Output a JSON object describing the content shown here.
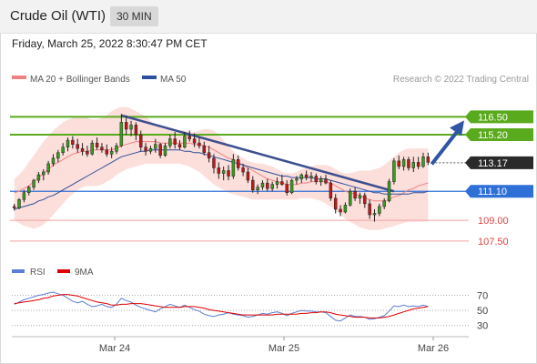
{
  "header": {
    "title": "Crude Oil (WTI)",
    "timeframe": "30 MIN",
    "datetime": "Friday, March 25, 2022 8:30:47 PM CET"
  },
  "legend": {
    "items": [
      {
        "label": "MA 20 + Bollinger Bands",
        "color": "#f08080"
      },
      {
        "label": "MA 50",
        "color": "#2c4f9e"
      }
    ],
    "credit": "Research © 2022 Trading Central"
  },
  "rsi_legend": {
    "items": [
      {
        "label": "RSI",
        "color": "#5b7fd4"
      },
      {
        "label": "9MA",
        "color": "#e00000"
      }
    ]
  },
  "chart_data": [
    {
      "type": "candlestick",
      "ylim": [
        106.5,
        118.5
      ],
      "levels": [
        {
          "value": 116.5,
          "label": "116.50",
          "kind": "resistance",
          "color": "#5aaa1e"
        },
        {
          "value": 115.2,
          "label": "115.20",
          "kind": "resistance",
          "color": "#5aaa1e"
        },
        {
          "value": 113.17,
          "label": "113.17",
          "kind": "last",
          "color": "#2a2a2a"
        },
        {
          "value": 111.1,
          "label": "111.10",
          "kind": "pivot",
          "color": "#2e6fd8"
        },
        {
          "value": 109.0,
          "label": "109.00",
          "kind": "support",
          "color": "#d44"
        },
        {
          "value": 107.5,
          "label": "107.50",
          "kind": "support",
          "color": "#d44"
        }
      ],
      "x_ticks": [
        "Mar 24",
        "Mar 25",
        "Mar 26"
      ],
      "series": {
        "ohlc": [
          [
            110.0,
            110.2,
            109.7,
            109.9
          ],
          [
            109.9,
            110.6,
            109.8,
            110.5
          ],
          [
            110.5,
            111.2,
            110.3,
            111.0
          ],
          [
            111.0,
            111.5,
            110.8,
            111.4
          ],
          [
            111.4,
            112.0,
            111.2,
            111.9
          ],
          [
            111.9,
            112.5,
            111.7,
            112.3
          ],
          [
            112.3,
            112.7,
            111.9,
            112.5
          ],
          [
            112.5,
            113.3,
            112.3,
            113.1
          ],
          [
            113.1,
            113.8,
            112.9,
            113.5
          ],
          [
            113.5,
            114.1,
            113.2,
            113.9
          ],
          [
            113.9,
            114.6,
            113.7,
            114.3
          ],
          [
            114.3,
            115.0,
            114.0,
            114.8
          ],
          [
            114.8,
            115.1,
            114.2,
            114.5
          ],
          [
            114.5,
            114.9,
            113.9,
            114.2
          ],
          [
            114.2,
            114.6,
            113.7,
            114.0
          ],
          [
            114.0,
            114.4,
            113.6,
            113.8
          ],
          [
            113.8,
            114.8,
            113.7,
            114.6
          ],
          [
            114.6,
            115.0,
            114.1,
            114.3
          ],
          [
            114.3,
            114.6,
            113.9,
            114.1
          ],
          [
            114.1,
            114.5,
            113.6,
            113.8
          ],
          [
            113.8,
            114.3,
            113.5,
            114.0
          ],
          [
            114.0,
            114.6,
            113.8,
            114.4
          ],
          [
            114.4,
            116.7,
            114.3,
            116.1
          ],
          [
            116.1,
            116.6,
            115.2,
            115.6
          ],
          [
            115.6,
            116.2,
            115.1,
            115.9
          ],
          [
            115.9,
            116.1,
            114.8,
            115.2
          ],
          [
            115.2,
            115.5,
            114.0,
            114.3
          ],
          [
            114.3,
            114.6,
            113.7,
            114.0
          ],
          [
            114.0,
            114.4,
            113.8,
            114.2
          ],
          [
            114.2,
            114.9,
            113.9,
            114.5
          ],
          [
            114.5,
            114.6,
            113.5,
            113.7
          ],
          [
            113.7,
            114.6,
            113.6,
            114.4
          ],
          [
            114.4,
            115.2,
            114.2,
            114.9
          ],
          [
            114.9,
            115.4,
            114.2,
            114.5
          ],
          [
            114.5,
            114.8,
            114.1,
            114.3
          ],
          [
            114.3,
            115.4,
            114.2,
            115.1
          ],
          [
            115.1,
            115.5,
            114.7,
            114.9
          ],
          [
            114.9,
            115.3,
            114.3,
            114.6
          ],
          [
            114.6,
            115.0,
            114.2,
            114.4
          ],
          [
            114.4,
            114.7,
            113.7,
            113.9
          ],
          [
            113.9,
            114.4,
            113.2,
            113.5
          ],
          [
            113.5,
            113.8,
            112.4,
            112.8
          ],
          [
            112.8,
            113.2,
            112.0,
            112.4
          ],
          [
            112.4,
            112.9,
            111.9,
            112.6
          ],
          [
            112.6,
            113.0,
            111.9,
            112.2
          ],
          [
            112.2,
            113.8,
            112.0,
            113.4
          ],
          [
            113.4,
            113.7,
            112.6,
            112.8
          ],
          [
            112.8,
            113.1,
            112.2,
            112.5
          ],
          [
            112.5,
            112.8,
            111.7,
            111.9
          ],
          [
            111.9,
            112.2,
            111.0,
            111.2
          ],
          [
            111.2,
            111.6,
            110.9,
            111.4
          ],
          [
            111.4,
            111.9,
            111.2,
            111.7
          ],
          [
            111.7,
            112.0,
            111.1,
            111.3
          ],
          [
            111.3,
            111.8,
            111.1,
            111.6
          ],
          [
            111.6,
            112.1,
            111.3,
            111.8
          ],
          [
            111.8,
            112.3,
            111.5,
            111.6
          ],
          [
            111.6,
            111.9,
            110.8,
            111.0
          ],
          [
            111.0,
            112.0,
            110.9,
            111.9
          ],
          [
            111.9,
            112.2,
            111.6,
            112.0
          ],
          [
            112.0,
            112.4,
            111.7,
            112.3
          ],
          [
            112.3,
            112.6,
            111.9,
            112.1
          ],
          [
            112.1,
            112.5,
            111.8,
            112.2
          ],
          [
            112.2,
            112.4,
            111.6,
            111.8
          ],
          [
            111.8,
            112.2,
            111.5,
            112.0
          ],
          [
            112.0,
            112.3,
            111.6,
            111.7
          ],
          [
            111.7,
            111.9,
            110.4,
            110.6
          ],
          [
            110.6,
            110.9,
            109.5,
            109.8
          ],
          [
            109.8,
            110.1,
            109.3,
            109.6
          ],
          [
            109.6,
            110.3,
            109.5,
            110.1
          ],
          [
            110.1,
            111.3,
            110.0,
            111.1
          ],
          [
            111.1,
            111.4,
            110.4,
            110.6
          ],
          [
            110.6,
            111.0,
            110.2,
            110.8
          ],
          [
            110.8,
            111.0,
            109.9,
            110.2
          ],
          [
            110.2,
            110.5,
            109.1,
            109.4
          ],
          [
            109.4,
            109.8,
            108.9,
            109.5
          ],
          [
            109.5,
            110.2,
            109.3,
            110.0
          ],
          [
            110.0,
            110.6,
            109.8,
            110.4
          ],
          [
            110.4,
            112.0,
            110.3,
            111.8
          ],
          [
            111.8,
            113.5,
            111.6,
            113.3
          ],
          [
            113.3,
            113.7,
            112.7,
            112.9
          ],
          [
            112.9,
            113.6,
            112.6,
            113.4
          ],
          [
            113.4,
            113.6,
            112.6,
            112.8
          ],
          [
            112.8,
            113.6,
            112.5,
            113.2
          ],
          [
            113.2,
            113.6,
            112.7,
            112.9
          ],
          [
            112.9,
            113.9,
            112.8,
            113.6
          ],
          [
            113.6,
            113.9,
            113.0,
            113.2
          ]
        ],
        "ma20": [
          111.0,
          111.1,
          111.3,
          111.5,
          111.8,
          112.1,
          112.4,
          112.7,
          113.0,
          113.2,
          113.4,
          113.6,
          113.8,
          113.9,
          114.0,
          114.0,
          114.1,
          114.1,
          114.1,
          114.1,
          114.1,
          114.2,
          114.4,
          114.5,
          114.6,
          114.7,
          114.7,
          114.7,
          114.7,
          114.7,
          114.6,
          114.6,
          114.6,
          114.6,
          114.6,
          114.6,
          114.6,
          114.5,
          114.5,
          114.4,
          114.3,
          114.1,
          113.9,
          113.7,
          113.5,
          113.4,
          113.2,
          113.0,
          112.8,
          112.6,
          112.4,
          112.2,
          112.0,
          111.9,
          111.8,
          111.7,
          111.6,
          111.6,
          111.6,
          111.7,
          111.7,
          111.8,
          111.8,
          111.8,
          111.8,
          111.7,
          111.5,
          111.3,
          111.1,
          111.0,
          110.9,
          110.8,
          110.6,
          110.5,
          110.4,
          110.4,
          110.4,
          110.5,
          110.7,
          110.8,
          111.0,
          111.2,
          111.3,
          111.5,
          111.6,
          111.7
        ],
        "ma50": [
          109.8,
          109.9,
          110.0,
          110.1,
          110.2,
          110.4,
          110.5,
          110.7,
          110.8,
          111.0,
          111.2,
          111.4,
          111.6,
          111.8,
          112.0,
          112.2,
          112.4,
          112.6,
          112.8,
          113.0,
          113.2,
          113.4,
          113.6,
          113.7,
          113.8,
          113.9,
          114.0,
          114.0,
          114.1,
          114.1,
          114.1,
          114.1,
          114.1,
          114.1,
          114.1,
          114.0,
          114.0,
          113.9,
          113.9,
          113.8,
          113.7,
          113.6,
          113.5,
          113.4,
          113.3,
          113.2,
          113.1,
          113.0,
          112.9,
          112.8,
          112.7,
          112.6,
          112.5,
          112.4,
          112.3,
          112.2,
          112.2,
          112.1,
          112.1,
          112.1,
          112.1,
          112.1,
          112.0,
          112.0,
          112.0,
          111.9,
          111.8,
          111.7,
          111.6,
          111.5,
          111.4,
          111.3,
          111.2,
          111.1,
          111.0,
          111.0,
          110.9,
          110.9,
          110.9,
          110.9,
          110.9,
          110.9,
          111.0,
          111.0,
          111.0,
          111.1
        ],
        "bb_upper": [
          112.0,
          112.3,
          112.7,
          113.2,
          113.7,
          114.2,
          114.7,
          115.1,
          115.5,
          115.8,
          116.1,
          116.3,
          116.4,
          116.5,
          116.5,
          116.4,
          116.3,
          116.3,
          116.4,
          116.6,
          116.9,
          117.1,
          117.2,
          117.2,
          117.1,
          116.9,
          116.7,
          116.5,
          116.2,
          115.9,
          115.7,
          115.6,
          115.6,
          115.6,
          115.5,
          115.5,
          115.4,
          115.4,
          115.5,
          115.6,
          115.6,
          115.5,
          115.2,
          114.8,
          114.4,
          114.0,
          113.7,
          113.5,
          113.3,
          113.2,
          113.1,
          113.1,
          113.0,
          112.9,
          112.7,
          112.5,
          112.4,
          112.4,
          112.5,
          112.7,
          112.8,
          112.9,
          113.0,
          113.0,
          113.0,
          112.9,
          112.7,
          112.5,
          112.4,
          112.4,
          112.5,
          112.6,
          112.6,
          112.6,
          112.7,
          112.8,
          113.0,
          113.3,
          113.6,
          113.9,
          114.1,
          114.2,
          114.2,
          114.2,
          114.2,
          114.2
        ],
        "bb_lower": [
          109.0,
          108.8,
          108.6,
          108.5,
          108.4,
          108.5,
          108.7,
          109.0,
          109.4,
          109.8,
          110.2,
          110.6,
          110.9,
          111.2,
          111.4,
          111.5,
          111.5,
          111.5,
          111.6,
          111.8,
          112.0,
          112.3,
          112.5,
          112.7,
          112.8,
          112.9,
          113.0,
          113.1,
          113.1,
          113.1,
          113.1,
          113.1,
          113.1,
          113.1,
          113.1,
          113.0,
          112.9,
          112.7,
          112.5,
          112.2,
          111.9,
          111.6,
          111.4,
          111.2,
          111.0,
          110.9,
          110.8,
          110.7,
          110.6,
          110.5,
          110.5,
          110.5,
          110.5,
          110.5,
          110.5,
          110.5,
          110.5,
          110.5,
          110.5,
          110.6,
          110.6,
          110.6,
          110.5,
          110.4,
          110.2,
          110.0,
          109.7,
          109.4,
          109.1,
          108.9,
          108.7,
          108.5,
          108.4,
          108.3,
          108.3,
          108.3,
          108.4,
          108.5,
          108.6,
          108.7,
          108.8,
          108.9,
          108.9,
          108.9,
          108.9,
          108.9
        ]
      },
      "annotations": {
        "trendline": {
          "from": [
            22,
            116.6
          ],
          "to": [
            78,
            111.1
          ]
        },
        "arrow_target": 116.5
      }
    },
    {
      "type": "line",
      "title": "RSI",
      "ylim": [
        20,
        85
      ],
      "y_ticks": [
        70,
        50,
        30
      ],
      "series": [
        {
          "name": "RSI",
          "values": [
            58,
            61,
            64,
            66,
            68,
            70,
            71,
            73,
            74,
            72,
            70,
            66,
            62,
            60,
            62,
            58,
            55,
            56,
            58,
            55,
            54,
            58,
            66,
            63,
            61,
            57,
            54,
            52,
            50,
            48,
            52,
            55,
            58,
            56,
            54,
            57,
            54,
            51,
            49,
            45,
            43,
            42,
            44,
            45,
            47,
            45,
            44,
            43,
            41,
            42,
            44,
            46,
            45,
            47,
            48,
            46,
            43,
            46,
            48,
            50,
            49,
            49,
            48,
            48,
            47,
            42,
            37,
            36,
            40,
            44,
            42,
            42,
            41,
            38,
            39,
            41,
            43,
            49,
            56,
            55,
            57,
            55,
            56,
            55,
            57,
            55
          ]
        },
        {
          "name": "9MA",
          "values": [
            59,
            60,
            61,
            62,
            63,
            64,
            66,
            67,
            69,
            70,
            71,
            71,
            70,
            69,
            67,
            65,
            63,
            61,
            60,
            59,
            57,
            57,
            58,
            58,
            59,
            59,
            59,
            58,
            57,
            56,
            55,
            54,
            54,
            54,
            54,
            55,
            55,
            55,
            54,
            53,
            51,
            50,
            49,
            48,
            47,
            46,
            45,
            44,
            44,
            44,
            44,
            44,
            44,
            44,
            45,
            45,
            45,
            45,
            45,
            46,
            46,
            47,
            47,
            48,
            48,
            47,
            45,
            44,
            43,
            42,
            41,
            41,
            41,
            40,
            40,
            40,
            41,
            42,
            44,
            46,
            48,
            50,
            52,
            53,
            54,
            55
          ]
        }
      ]
    }
  ]
}
